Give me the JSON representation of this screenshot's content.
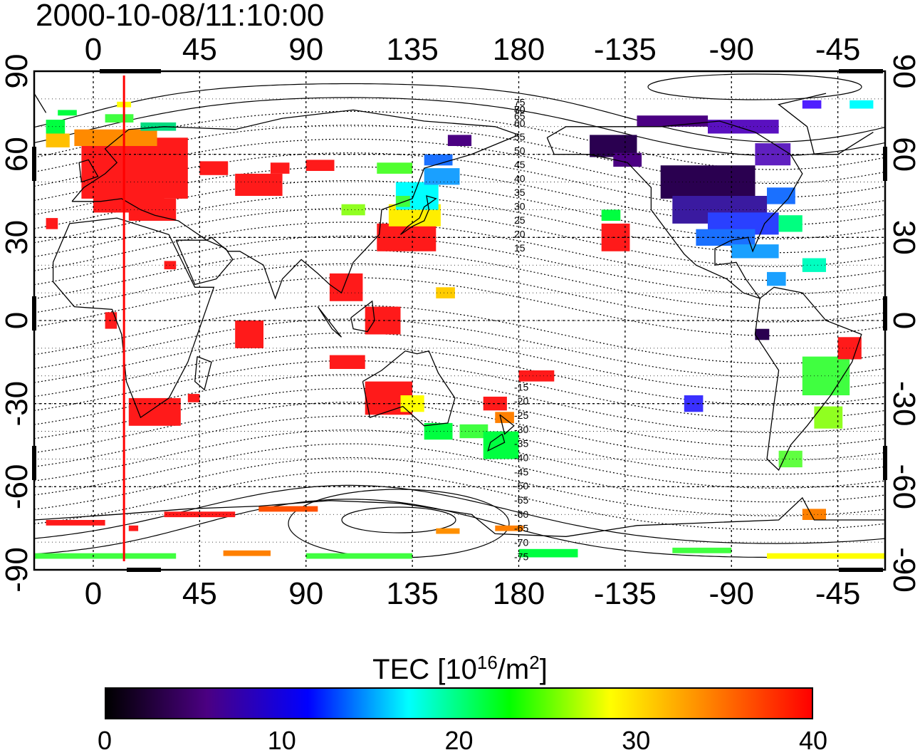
{
  "title": "2000-10-08/11:10:00",
  "map": {
    "top_axis_ticks": [
      "0",
      "45",
      "90",
      "135",
      "180",
      "-135",
      "-90",
      "-45"
    ],
    "bottom_axis_ticks": [
      "0",
      "45",
      "90",
      "135",
      "180",
      "-135",
      "-90",
      "-45"
    ],
    "left_axis_ticks": [
      "90",
      "60",
      "30",
      "0",
      "-30",
      "-60",
      "-90"
    ],
    "right_axis_ticks": [
      "90",
      "60",
      "30",
      "0",
      "-30",
      "-60",
      "-90"
    ],
    "lon_range": [
      -25,
      335
    ],
    "lat_range": [
      -90,
      90
    ],
    "grid": "dotted, every 45 deg lon and 10 deg lat",
    "contour_labels": [
      "80",
      "75",
      "70",
      "65",
      "60",
      "55",
      "50",
      "45",
      "40",
      "35",
      "30",
      "25",
      "20",
      "15",
      "-15",
      "-20",
      "-25",
      "-30",
      "-35",
      "-40",
      "-45",
      "-50",
      "-55",
      "-60",
      "-65",
      "-70",
      "-75"
    ],
    "terminator_longitude": 13,
    "colors": {
      "terminator": "#ff0000",
      "high_tec": "#ff1a1a",
      "low_tec": "#2a0050"
    }
  },
  "colorbar": {
    "title_prefix": "TEC  [10",
    "title_exp1": "16",
    "title_mid": "/m",
    "title_exp2": "2",
    "title_suffix": "]",
    "ticks": [
      "0",
      "10",
      "20",
      "30",
      "40"
    ],
    "range": [
      0,
      40
    ],
    "stops": [
      "#000000",
      "#4b0082",
      "#0000ff",
      "#00ffff",
      "#00ff00",
      "#ffff00",
      "#ff8000",
      "#ff0000"
    ]
  }
}
